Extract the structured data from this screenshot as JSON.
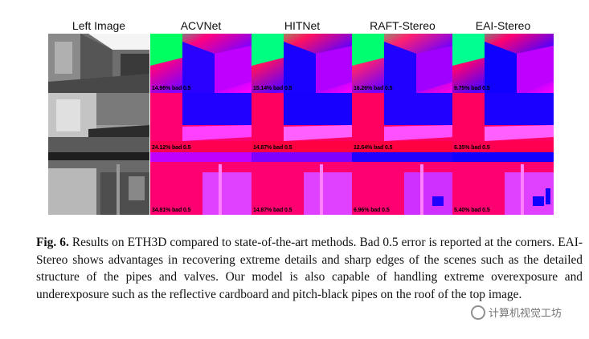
{
  "columns": [
    "Left Image",
    "ACVNet",
    "HITNet",
    "RAFT-Stereo",
    "EAI-Stereo"
  ],
  "rows": [
    {
      "errors": [
        "14.96% bad 0.5",
        "15.14% bad 0.5",
        "16.26% bad 0.5",
        "9.75% bad 0.5"
      ]
    },
    {
      "errors": [
        "24.12% bad 0.5",
        "14.87% bad 0.5",
        "12.64% bad 0.5",
        "6.35% bad 0.5"
      ]
    },
    {
      "errors": [
        "34.81% bad 0.5",
        "14.87% bad 0.5",
        "6.96% bad 0.5",
        "5.40% bad 0.5"
      ]
    }
  ],
  "caption": {
    "label": "Fig. 6.",
    "text": " Results on ETH3D compared to state-of-the-art methods. Bad 0.5 error is reported at the corners. EAI-Stereo shows advantages in recovering extreme details and sharp edges of the scenes such as the detailed structure of the pipes and valves. Our model is also capable of handling extreme overexposure and underexposure such as the reflective cardboard and pitch-black pipes on the roof of the top image."
  },
  "watermark": "计算机视觉工坊"
}
